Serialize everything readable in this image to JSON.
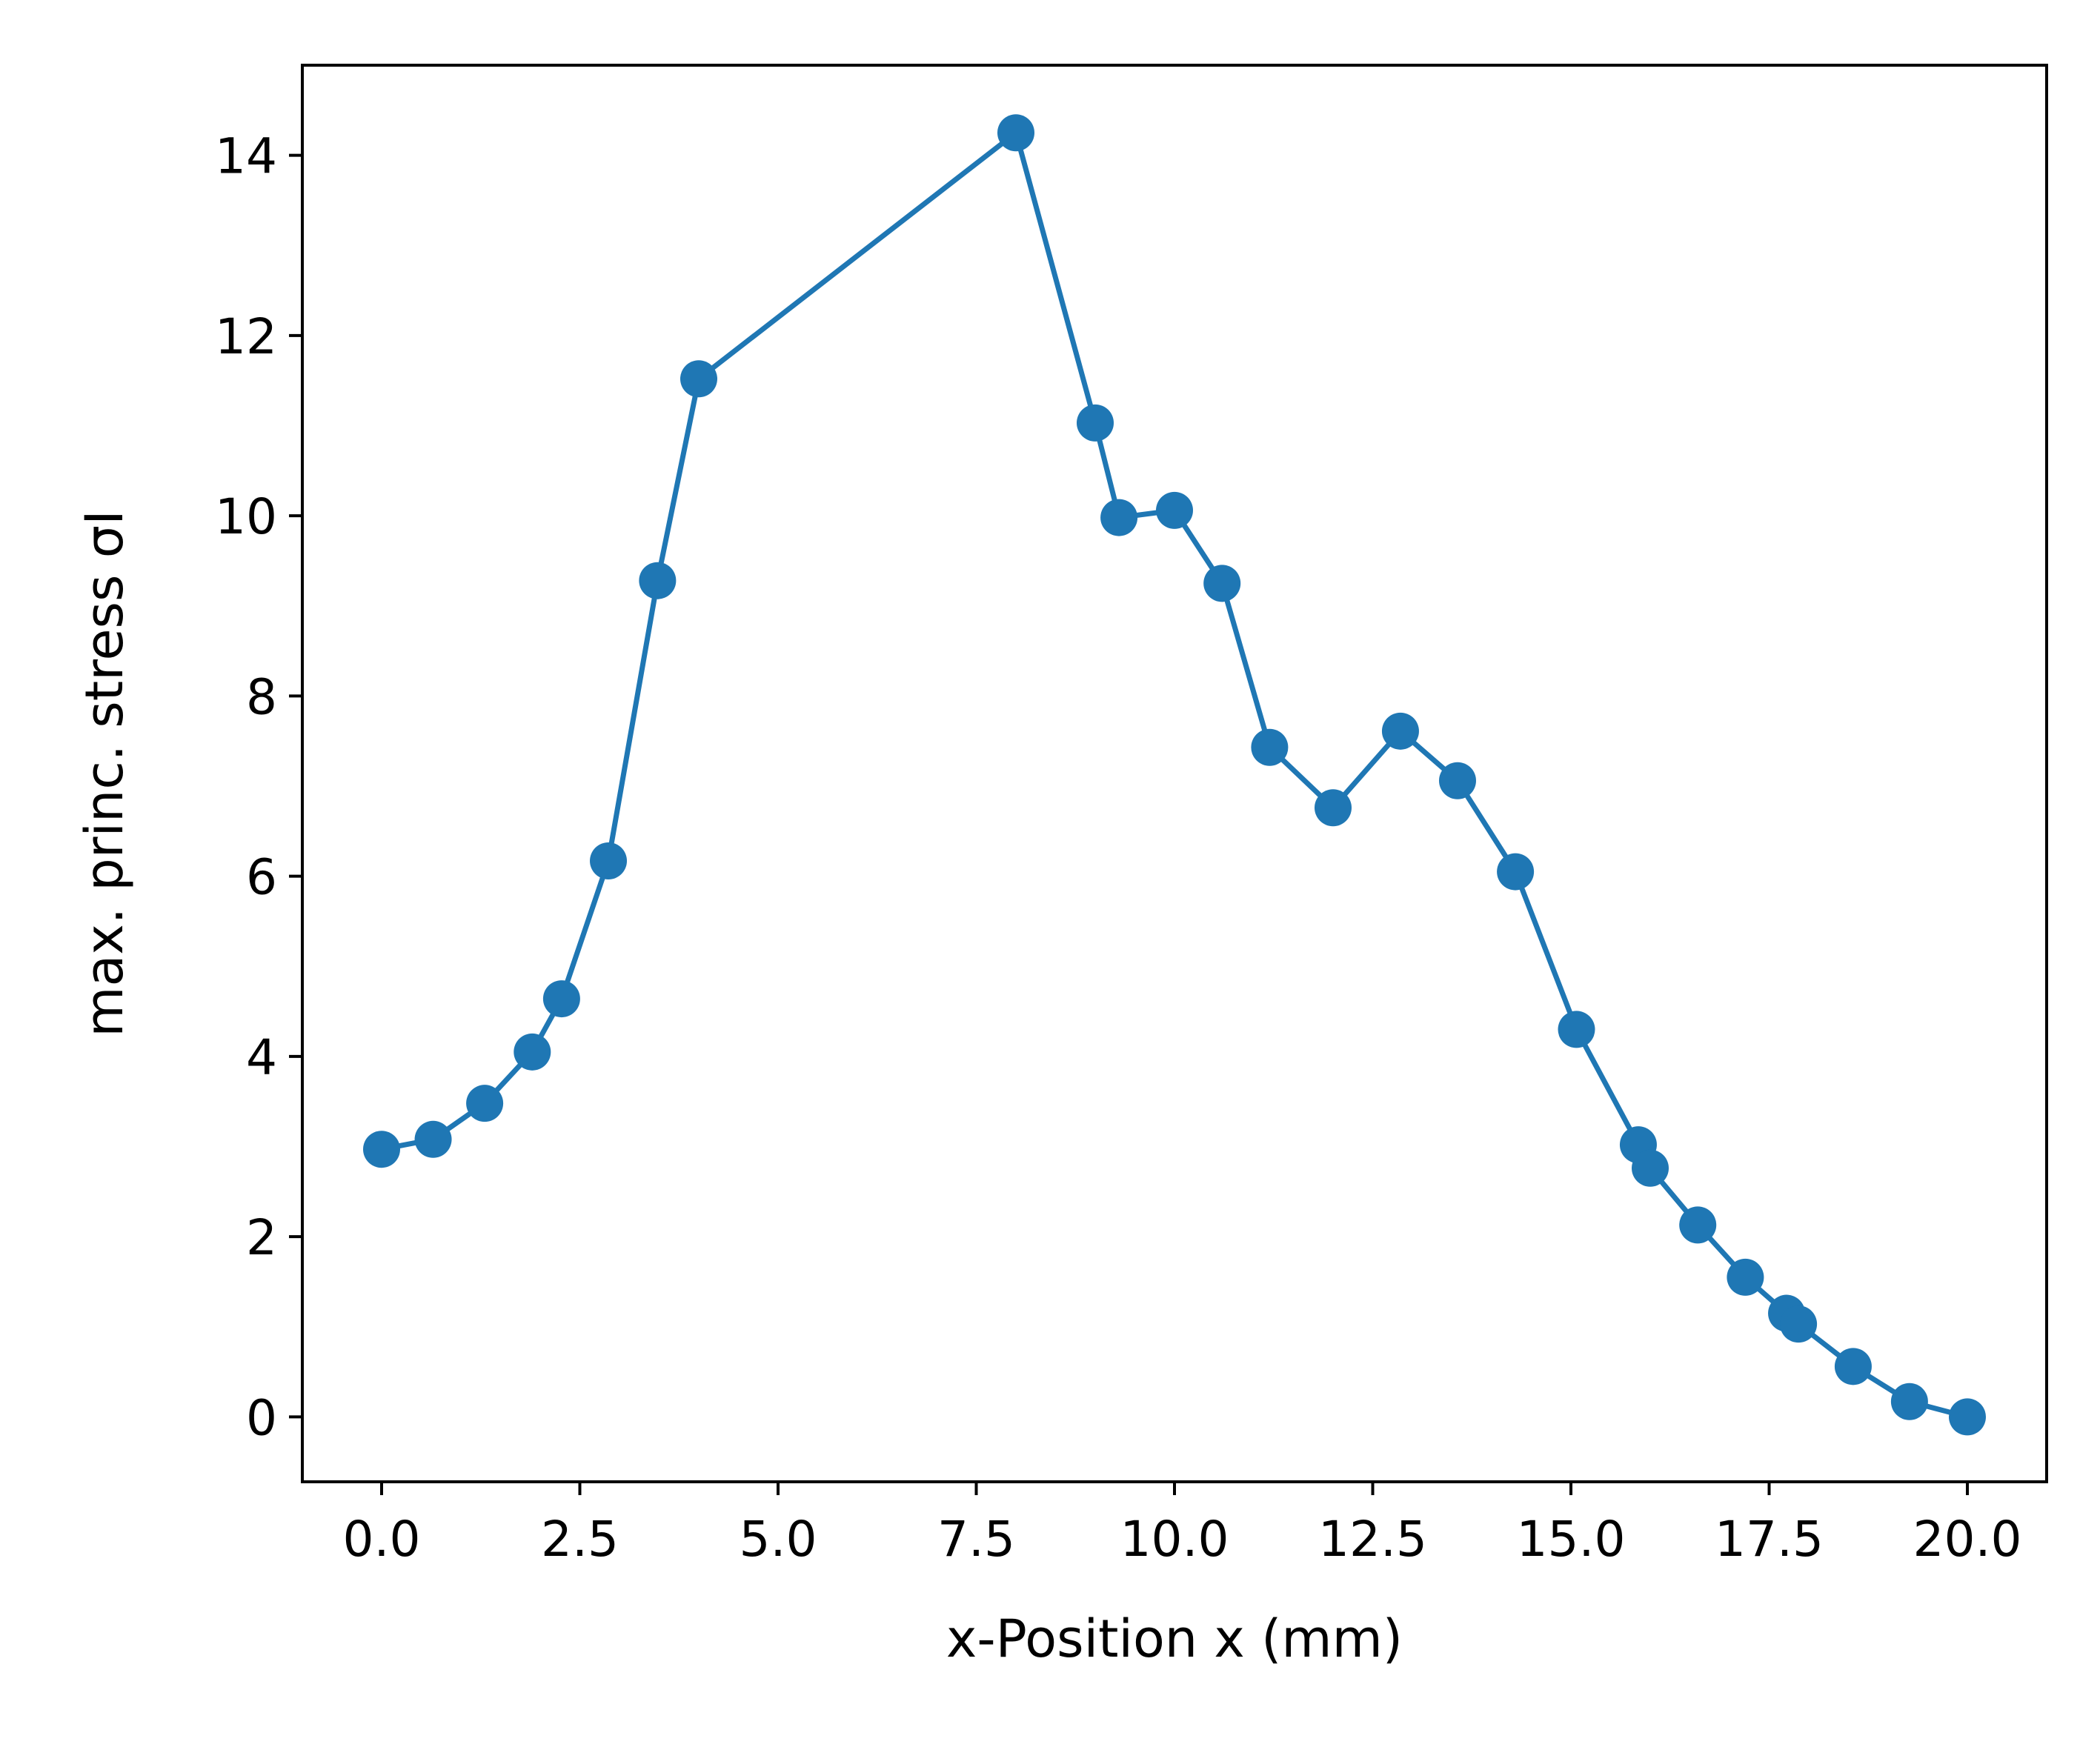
{
  "chart_data": {
    "type": "line",
    "title": "",
    "xlabel": "x-Position x (mm)",
    "ylabel": "max. princ. stress σI",
    "xlim": [
      -1.0,
      21.0
    ],
    "ylim": [
      -0.72,
      15.0
    ],
    "xticks": [
      0.0,
      2.5,
      5.0,
      7.5,
      10.0,
      12.5,
      15.0,
      17.5,
      20.0
    ],
    "xtick_labels": [
      "0.0",
      "2.5",
      "5.0",
      "7.5",
      "10.0",
      "12.5",
      "15.0",
      "17.5",
      "20.0"
    ],
    "yticks": [
      0,
      2,
      4,
      6,
      8,
      10,
      12,
      14
    ],
    "ytick_labels": [
      "0",
      "2",
      "4",
      "6",
      "8",
      "10",
      "12",
      "14"
    ],
    "grid": false,
    "marker": "circle",
    "color": "#1f77b4",
    "series": [
      {
        "x": [
          0.0,
          0.65,
          1.3,
          1.9,
          2.27,
          2.86,
          3.48,
          4.0,
          8.0,
          9.0,
          9.3,
          10.0,
          10.6,
          11.2,
          12.0,
          12.85,
          13.57,
          14.3,
          15.07,
          15.85,
          16.0,
          16.6,
          17.2,
          17.72,
          17.87,
          18.56,
          19.27,
          20.0
        ],
        "y": [
          2.97,
          3.08,
          3.48,
          4.05,
          4.64,
          6.17,
          9.28,
          11.52,
          14.25,
          11.03,
          9.98,
          10.06,
          9.25,
          7.43,
          6.76,
          7.61,
          7.06,
          6.05,
          4.3,
          3.02,
          2.76,
          2.13,
          1.55,
          1.15,
          1.03,
          0.56,
          0.17,
          0.0
        ]
      }
    ]
  }
}
